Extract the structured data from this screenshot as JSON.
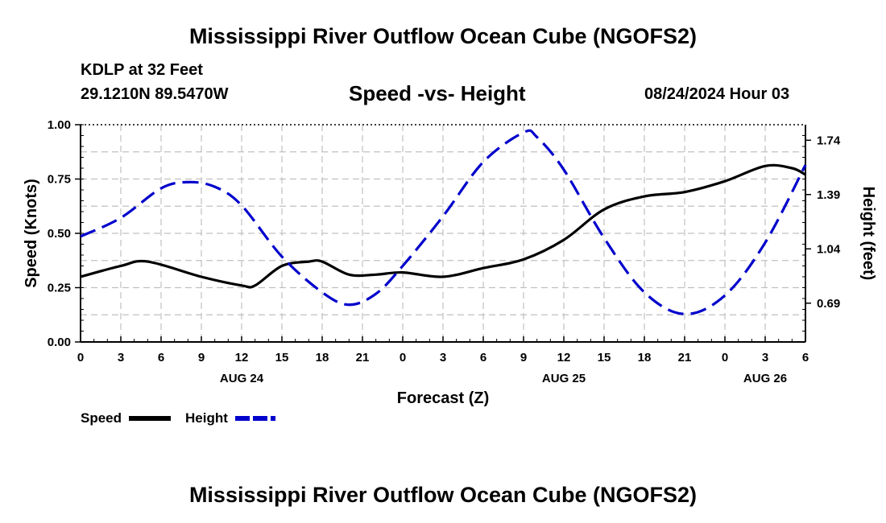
{
  "header": {
    "title": "Mississippi River Outflow Ocean Cube (NGOFS2)",
    "station": "KDLP at 32 Feet",
    "latlon": "29.1210N  89.5470W",
    "subtitle": "Speed -vs- Height",
    "datetime": "08/24/2024 Hour 03"
  },
  "footer": {
    "title": "Mississippi River Outflow Ocean Cube (NGOFS2)"
  },
  "chart_data": {
    "type": "line",
    "xlabel": "Forecast (Z)",
    "ylabel": "Speed (Knots)",
    "y2label": "Height (feet)",
    "xlim": [
      0,
      54
    ],
    "ylim": [
      0,
      1
    ],
    "y2lim": [
      0.44,
      1.84
    ],
    "grid": true,
    "x_ticks": [
      0,
      3,
      6,
      9,
      12,
      15,
      18,
      21,
      24,
      27,
      30,
      33,
      36,
      39,
      42,
      45,
      48,
      51,
      54
    ],
    "x_tick_labels": [
      "0",
      "3",
      "6",
      "9",
      "12",
      "15",
      "18",
      "21",
      "0",
      "3",
      "6",
      "9",
      "12",
      "15",
      "18",
      "21",
      "0",
      "3",
      "6"
    ],
    "date_labels": [
      {
        "x": 12,
        "label": "AUG 24"
      },
      {
        "x": 36,
        "label": "AUG 25"
      },
      {
        "x": 51,
        "label": "AUG 26"
      }
    ],
    "y_ticks": [
      0,
      0.25,
      0.5,
      0.75,
      1.0
    ],
    "y_tick_labels": [
      "0.00",
      "0.25",
      "0.50",
      "0.75",
      "1.00"
    ],
    "y2_ticks": [
      0.69,
      1.04,
      1.39,
      1.74
    ],
    "y2_tick_labels": [
      "0.69",
      "1.04",
      "1.39",
      "1.74"
    ],
    "series": [
      {
        "name": "Speed",
        "axis": "left",
        "color": "#000000",
        "dash": "solid",
        "x": [
          0,
          3,
          5,
          9,
          12,
          13,
          15,
          17,
          18,
          20,
          22,
          24,
          27,
          30,
          33,
          36,
          39,
          42,
          45,
          48,
          51,
          53,
          54
        ],
        "y": [
          0.3,
          0.35,
          0.37,
          0.3,
          0.26,
          0.26,
          0.35,
          0.37,
          0.37,
          0.31,
          0.31,
          0.32,
          0.3,
          0.34,
          0.38,
          0.47,
          0.61,
          0.67,
          0.69,
          0.74,
          0.81,
          0.8,
          0.77
        ]
      },
      {
        "name": "Height",
        "axis": "right",
        "color": "#0000cc",
        "dash": "dashed",
        "x": [
          0,
          3,
          6,
          8,
          10,
          12,
          15,
          18,
          20,
          22,
          24,
          27,
          30,
          33,
          34,
          36,
          39,
          42,
          45,
          48,
          51,
          54
        ],
        "y": [
          1.12,
          1.24,
          1.43,
          1.47,
          1.44,
          1.32,
          0.99,
          0.76,
          0.68,
          0.75,
          0.93,
          1.25,
          1.6,
          1.79,
          1.76,
          1.55,
          1.11,
          0.76,
          0.62,
          0.74,
          1.08,
          1.58
        ]
      }
    ],
    "legend": [
      {
        "label": "Speed",
        "color": "#000000",
        "dash": "solid"
      },
      {
        "label": "Height",
        "color": "#0000cc",
        "dash": "dashed"
      }
    ]
  }
}
